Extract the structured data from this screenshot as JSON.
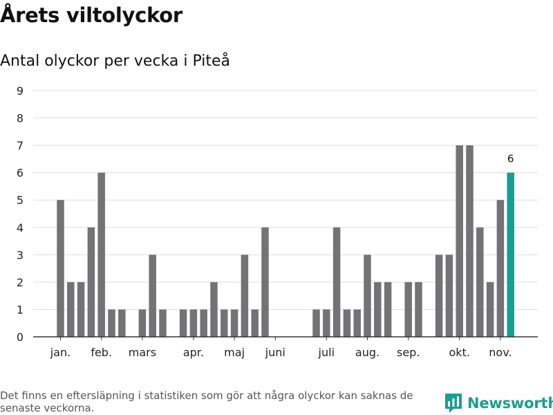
{
  "title": "Årets viltolyckor",
  "subtitle": "Antal olyckor per vecka i Piteå",
  "footnote": "Det finns en eftersläpning i statistiken som gör att några olyckor kan saknas de senaste veckorna.",
  "brand": {
    "name": "Newsworthy",
    "icon": "newsworthy-logo-icon"
  },
  "colors": {
    "bar": "#737277",
    "highlight": "#149e96",
    "grid": "#dddddd",
    "axis": "#333333"
  },
  "chart_data": {
    "type": "bar",
    "x_unit": "ISO week number",
    "x": [
      2,
      3,
      4,
      5,
      6,
      7,
      8,
      10,
      11,
      12,
      14,
      15,
      16,
      17,
      18,
      19,
      20,
      21,
      22,
      27,
      28,
      29,
      30,
      31,
      32,
      33,
      34,
      36,
      37,
      39,
      40,
      41,
      42,
      43,
      44,
      45,
      46
    ],
    "values": [
      5,
      2,
      2,
      4,
      6,
      1,
      1,
      1,
      3,
      1,
      1,
      1,
      1,
      2,
      1,
      1,
      3,
      1,
      4,
      1,
      1,
      4,
      1,
      1,
      3,
      2,
      2,
      2,
      2,
      3,
      3,
      7,
      7,
      4,
      2,
      5,
      6
    ],
    "highlight_index": 36,
    "data_labels": [
      {
        "index": 36,
        "text": "6"
      }
    ],
    "ylim": [
      0,
      9
    ],
    "yticks": [
      0,
      1,
      2,
      3,
      4,
      5,
      6,
      7,
      8,
      9
    ],
    "month_ticks": [
      {
        "label": "jan.",
        "week": 2
      },
      {
        "label": "feb.",
        "week": 6
      },
      {
        "label": "mars",
        "week": 10
      },
      {
        "label": "apr.",
        "week": 15
      },
      {
        "label": "maj",
        "week": 19
      },
      {
        "label": "juni",
        "week": 23
      },
      {
        "label": "juli",
        "week": 28
      },
      {
        "label": "aug.",
        "week": 32
      },
      {
        "label": "sep.",
        "week": 36
      },
      {
        "label": "okt.",
        "week": 41
      },
      {
        "label": "nov.",
        "week": 45
      }
    ],
    "grid": true,
    "legend": "none",
    "xlabel": "",
    "ylabel": ""
  }
}
